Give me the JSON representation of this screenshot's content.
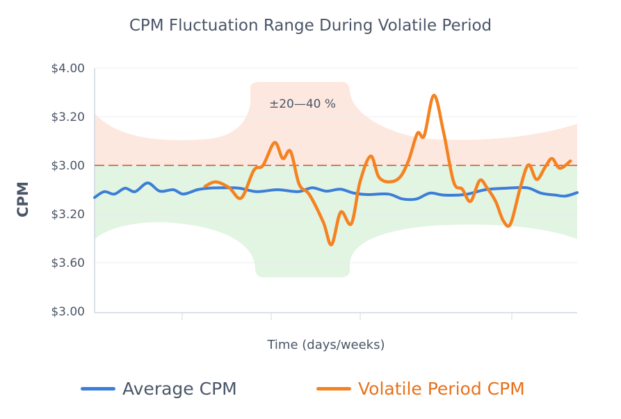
{
  "chart_data": {
    "type": "line",
    "title": "CPM Fluctuation Range During Volatile Period",
    "xlabel": "Time (days/weeks)",
    "ylabel": "CPM",
    "xlim": [
      0,
      100
    ],
    "ylim": [
      0,
      5
    ],
    "yticks": [
      {
        "value": 5,
        "label": "$4.00"
      },
      {
        "value": 4,
        "label": "$3.20"
      },
      {
        "value": 3,
        "label": "$3.00"
      },
      {
        "value": 2,
        "label": "$3.20"
      },
      {
        "value": 1,
        "label": "$3.60"
      },
      {
        "value": 0,
        "label": "$3.00"
      }
    ],
    "grid": true,
    "reference_line": {
      "y": 3,
      "style": "dashed",
      "color": "#c0562a"
    },
    "annotation": "±20—40 %",
    "legend_position": "bottom",
    "series": [
      {
        "name": "Average CPM",
        "color": "#3b7dd8",
        "x": [
          0,
          2.0,
          4.1,
          6.3,
          8.4,
          11.0,
          13.5,
          16.3,
          18.4,
          21.3,
          23.5,
          26.4,
          30.0,
          33.6,
          37.9,
          42.2,
          45.1,
          48.0,
          50.9,
          53.7,
          56.6,
          60.9,
          63.8,
          66.7,
          69.5,
          72.3,
          76.7,
          81.0,
          85.3,
          89.6,
          92.5,
          95.4,
          97.6,
          100
        ],
        "y": [
          2.34,
          2.46,
          2.41,
          2.53,
          2.46,
          2.64,
          2.47,
          2.5,
          2.41,
          2.5,
          2.53,
          2.54,
          2.53,
          2.46,
          2.5,
          2.46,
          2.54,
          2.47,
          2.51,
          2.43,
          2.4,
          2.41,
          2.31,
          2.31,
          2.43,
          2.39,
          2.4,
          2.5,
          2.53,
          2.54,
          2.43,
          2.39,
          2.37,
          2.44
        ]
      },
      {
        "name": "Volatile Period CPM",
        "color": "#f58220",
        "x": [
          22.9,
          25.1,
          27.9,
          30.4,
          33.0,
          34.9,
          37.3,
          39.0,
          40.6,
          42.4,
          44.5,
          47.4,
          49.1,
          51.0,
          53.2,
          55.0,
          57.2,
          58.9,
          61.1,
          63.3,
          65.1,
          66.9,
          68.3,
          70.3,
          72.3,
          74.4,
          76.2,
          77.9,
          79.8,
          81.3,
          83.1,
          84.7,
          86.2,
          88.2,
          89.9,
          91.6,
          93.4,
          94.8,
          96.4,
          98.6
        ],
        "y": [
          2.57,
          2.66,
          2.54,
          2.33,
          2.9,
          3.0,
          3.47,
          3.14,
          3.29,
          2.61,
          2.4,
          1.83,
          1.37,
          2.04,
          1.8,
          2.66,
          3.19,
          2.76,
          2.66,
          2.76,
          3.11,
          3.66,
          3.61,
          4.44,
          3.69,
          2.66,
          2.51,
          2.26,
          2.69,
          2.54,
          2.26,
          1.86,
          1.8,
          2.54,
          3.01,
          2.71,
          2.97,
          3.14,
          2.94,
          3.09
        ]
      }
    ]
  }
}
